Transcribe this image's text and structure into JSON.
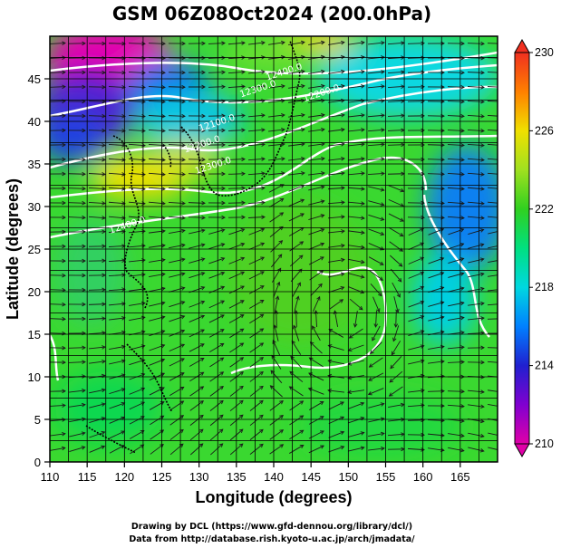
{
  "chart_data": {
    "type": "heatmap",
    "title": "GSM 06Z08Oct2024 (200.0hPa)",
    "xlabel": "Longitude (degrees)",
    "ylabel": "Latitude  (degrees)",
    "xlim": [
      110,
      170
    ],
    "ylim": [
      0,
      50
    ],
    "x_ticks": [
      "110",
      "115",
      "120",
      "125",
      "130",
      "135",
      "140",
      "145",
      "150",
      "155",
      "160",
      "165"
    ],
    "y_ticks": [
      "0",
      "5",
      "10",
      "15",
      "20",
      "25",
      "30",
      "35",
      "40",
      "45"
    ],
    "x_tick_values": [
      110,
      115,
      120,
      125,
      130,
      135,
      140,
      145,
      150,
      155,
      160,
      165
    ],
    "y_tick_values": [
      0,
      5,
      10,
      15,
      20,
      25,
      30,
      35,
      40,
      45
    ],
    "grid": true,
    "colorbar": {
      "min": 210,
      "max": 230,
      "labels": [
        "210",
        "214",
        "218",
        "222",
        "226",
        "230"
      ],
      "label_values": [
        210,
        214,
        218,
        222,
        226,
        230
      ],
      "stops": [
        {
          "value": 210,
          "color": "#e000a8"
        },
        {
          "value": 212,
          "color": "#8000d0"
        },
        {
          "value": 214,
          "color": "#2020d0"
        },
        {
          "value": 216,
          "color": "#0080ff"
        },
        {
          "value": 218,
          "color": "#00d8e0"
        },
        {
          "value": 220,
          "color": "#00e080"
        },
        {
          "value": 222,
          "color": "#30d020"
        },
        {
          "value": 224,
          "color": "#a0e020"
        },
        {
          "value": 226,
          "color": "#f0e000"
        },
        {
          "value": 228,
          "color": "#ff8000"
        },
        {
          "value": 230,
          "color": "#f03020"
        }
      ]
    },
    "contour_labels": [
      {
        "text": "12400.0",
        "lon": 141.5,
        "lat": 45.5
      },
      {
        "text": "12300.0",
        "lon": 138.0,
        "lat": 43.5
      },
      {
        "text": "12200.0",
        "lon": 146.5,
        "lat": 43.0
      },
      {
        "text": "12100.0",
        "lon": 132.5,
        "lat": 39.5
      },
      {
        "text": "12200.0",
        "lon": 130.5,
        "lat": 37.0
      },
      {
        "text": "12300.0",
        "lon": 132.0,
        "lat": 34.5
      },
      {
        "text": "12400.0",
        "lon": 120.5,
        "lat": 27.5
      }
    ],
    "contour_label_color": "#ffffff"
  },
  "credits": {
    "line1": "Drawing by DCL (https://www.gfd-dennou.org/library/dcl/)",
    "line2": "Data from http://database.rish.kyoto-u.ac.jp/arch/jmadata/"
  }
}
